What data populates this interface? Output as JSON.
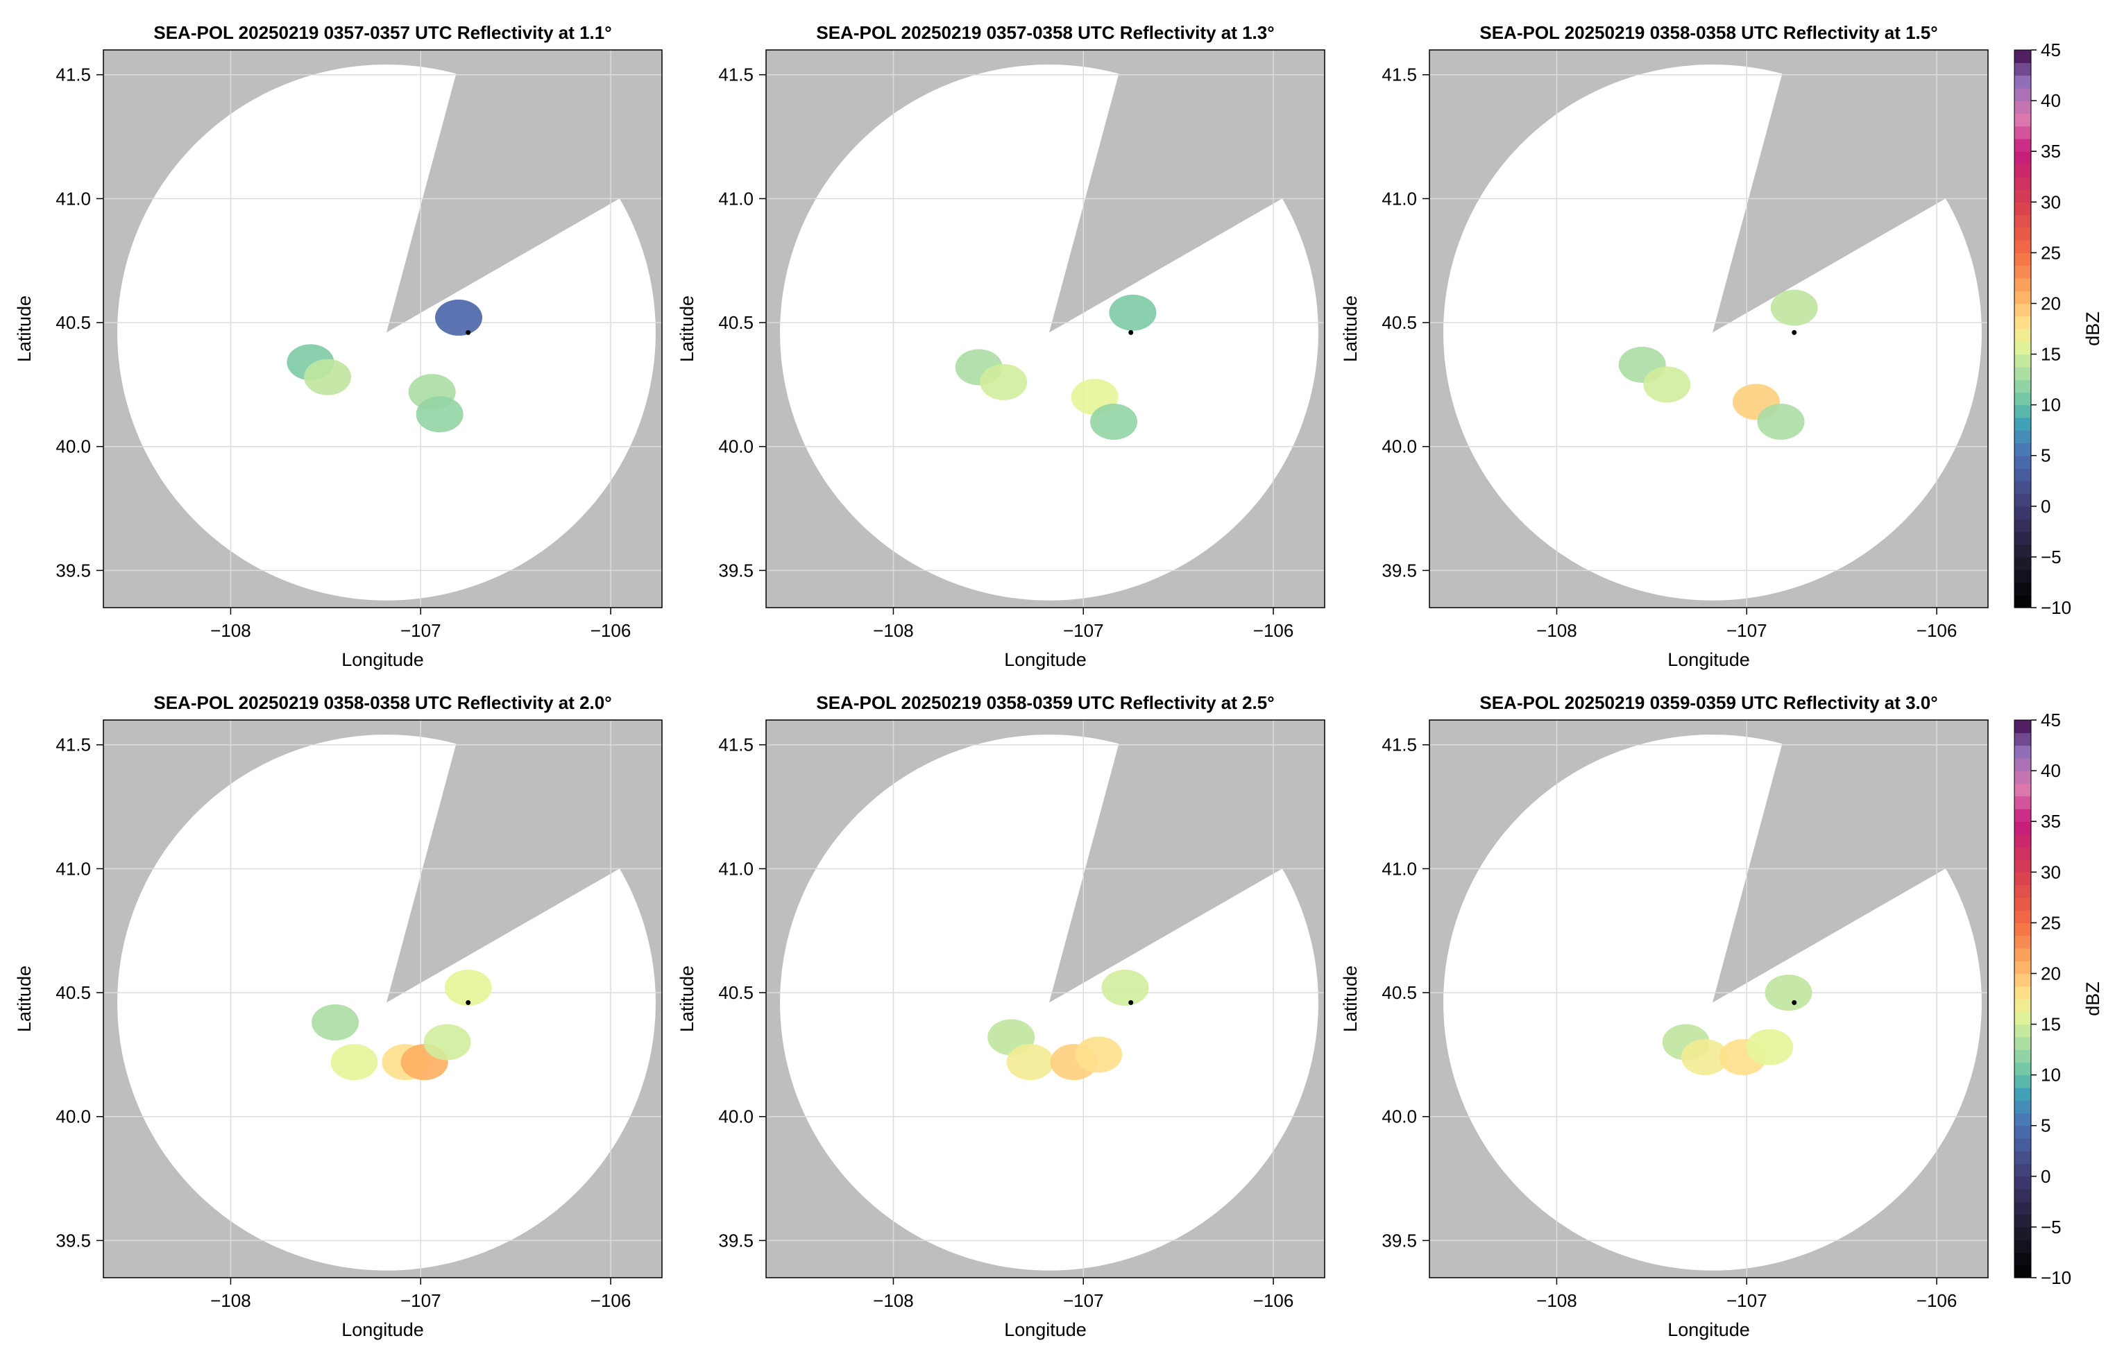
{
  "figure": {
    "colors": {
      "out_of_range": "#bebebe",
      "coverage": "#ffffff",
      "grid": "#dcdcdc",
      "axis": "#000000",
      "radar_marker": "#000000"
    },
    "colorbar": {
      "label": "dBZ",
      "ticks": [
        -10,
        -5,
        0,
        5,
        10,
        15,
        20,
        25,
        30,
        35,
        40,
        45
      ],
      "range": [
        -10,
        45
      ],
      "colormap": "spectral_r (black below 5, purple above 35)"
    }
  },
  "chart_data": [
    {
      "type": "heatmap",
      "title": "SEA-POL 20250219 0357-0357 UTC Reflectivity at 1.1°",
      "xlabel": "Longitude",
      "ylabel": "Latitude",
      "xlim": [
        -108.67,
        -105.73
      ],
      "ylim": [
        39.35,
        41.6
      ],
      "xticks": [
        -108,
        -107,
        -106
      ],
      "yticks": [
        39.5,
        40.0,
        40.5,
        41.0,
        41.5
      ],
      "grid": true,
      "radar_site": {
        "lon": -106.75,
        "lat": 40.46
      },
      "coverage_center": {
        "lon": -107.18,
        "lat": 40.46
      },
      "coverage_radius_km": 120,
      "blocked_sector_deg": [
        15,
        60
      ],
      "echoes": [
        {
          "lon": -107.58,
          "lat": 40.34,
          "dbz": 11
        },
        {
          "lon": -107.49,
          "lat": 40.28,
          "dbz": 14
        },
        {
          "lon": -106.94,
          "lat": 40.22,
          "dbz": 13
        },
        {
          "lon": -106.9,
          "lat": 40.13,
          "dbz": 12
        },
        {
          "lon": -106.8,
          "lat": 40.52,
          "dbz": 4
        }
      ]
    },
    {
      "type": "heatmap",
      "title": "SEA-POL 20250219 0357-0358 UTC Reflectivity at 1.3°",
      "xlabel": "Longitude",
      "ylabel": "Latitude",
      "xlim": [
        -108.67,
        -105.73
      ],
      "ylim": [
        39.35,
        41.6
      ],
      "xticks": [
        -108,
        -107,
        -106
      ],
      "yticks": [
        39.5,
        40.0,
        40.5,
        41.0,
        41.5
      ],
      "grid": true,
      "radar_site": {
        "lon": -106.75,
        "lat": 40.46
      },
      "coverage_center": {
        "lon": -107.18,
        "lat": 40.46
      },
      "coverage_radius_km": 120,
      "blocked_sector_deg": [
        15,
        60
      ],
      "echoes": [
        {
          "lon": -107.55,
          "lat": 40.32,
          "dbz": 13
        },
        {
          "lon": -107.42,
          "lat": 40.26,
          "dbz": 15
        },
        {
          "lon": -106.94,
          "lat": 40.2,
          "dbz": 16
        },
        {
          "lon": -106.84,
          "lat": 40.1,
          "dbz": 12
        },
        {
          "lon": -106.74,
          "lat": 40.54,
          "dbz": 11
        }
      ]
    },
    {
      "type": "heatmap",
      "title": "SEA-POL 20250219 0358-0358 UTC Reflectivity at 1.5°",
      "xlabel": "Longitude",
      "ylabel": "Latitude",
      "xlim": [
        -108.67,
        -105.73
      ],
      "ylim": [
        39.35,
        41.6
      ],
      "xticks": [
        -108,
        -107,
        -106
      ],
      "yticks": [
        39.5,
        40.0,
        40.5,
        41.0,
        41.5
      ],
      "grid": true,
      "radar_site": {
        "lon": -106.75,
        "lat": 40.46
      },
      "coverage_center": {
        "lon": -107.18,
        "lat": 40.46
      },
      "coverage_radius_km": 120,
      "blocked_sector_deg": [
        15,
        60
      ],
      "echoes": [
        {
          "lon": -107.55,
          "lat": 40.33,
          "dbz": 13
        },
        {
          "lon": -107.42,
          "lat": 40.25,
          "dbz": 15
        },
        {
          "lon": -106.95,
          "lat": 40.18,
          "dbz": 19
        },
        {
          "lon": -106.82,
          "lat": 40.1,
          "dbz": 13
        },
        {
          "lon": -106.75,
          "lat": 40.56,
          "dbz": 14
        }
      ]
    },
    {
      "type": "heatmap",
      "title": "SEA-POL 20250219 0358-0358 UTC Reflectivity at 2.0°",
      "xlabel": "Longitude",
      "ylabel": "Latitude",
      "xlim": [
        -108.67,
        -105.73
      ],
      "ylim": [
        39.35,
        41.6
      ],
      "xticks": [
        -108,
        -107,
        -106
      ],
      "yticks": [
        39.5,
        40.0,
        40.5,
        41.0,
        41.5
      ],
      "grid": true,
      "radar_site": {
        "lon": -106.75,
        "lat": 40.46
      },
      "coverage_center": {
        "lon": -107.18,
        "lat": 40.46
      },
      "coverage_radius_km": 120,
      "blocked_sector_deg": [
        15,
        60
      ],
      "echoes": [
        {
          "lon": -107.45,
          "lat": 40.38,
          "dbz": 13
        },
        {
          "lon": -107.35,
          "lat": 40.22,
          "dbz": 16
        },
        {
          "lon": -107.08,
          "lat": 40.22,
          "dbz": 18
        },
        {
          "lon": -106.98,
          "lat": 40.22,
          "dbz": 21
        },
        {
          "lon": -106.86,
          "lat": 40.3,
          "dbz": 15
        },
        {
          "lon": -106.75,
          "lat": 40.52,
          "dbz": 16
        }
      ]
    },
    {
      "type": "heatmap",
      "title": "SEA-POL 20250219 0358-0359 UTC Reflectivity at 2.5°",
      "xlabel": "Longitude",
      "ylabel": "Latitude",
      "xlim": [
        -108.67,
        -105.73
      ],
      "ylim": [
        39.35,
        41.6
      ],
      "xticks": [
        -108,
        -107,
        -106
      ],
      "yticks": [
        39.5,
        40.0,
        40.5,
        41.0,
        41.5
      ],
      "grid": true,
      "radar_site": {
        "lon": -106.75,
        "lat": 40.46
      },
      "coverage_center": {
        "lon": -107.18,
        "lat": 40.46
      },
      "coverage_radius_km": 120,
      "blocked_sector_deg": [
        15,
        60
      ],
      "echoes": [
        {
          "lon": -107.38,
          "lat": 40.32,
          "dbz": 14
        },
        {
          "lon": -107.28,
          "lat": 40.22,
          "dbz": 17
        },
        {
          "lon": -107.05,
          "lat": 40.22,
          "dbz": 19
        },
        {
          "lon": -106.92,
          "lat": 40.25,
          "dbz": 18
        },
        {
          "lon": -106.78,
          "lat": 40.52,
          "dbz": 15
        }
      ]
    },
    {
      "type": "heatmap",
      "title": "SEA-POL 20250219 0359-0359 UTC Reflectivity at 3.0°",
      "xlabel": "Longitude",
      "ylabel": "Latitude",
      "xlim": [
        -108.67,
        -105.73
      ],
      "ylim": [
        39.35,
        41.6
      ],
      "xticks": [
        -108,
        -107,
        -106
      ],
      "yticks": [
        39.5,
        40.0,
        40.5,
        41.0,
        41.5
      ],
      "grid": true,
      "radar_site": {
        "lon": -106.75,
        "lat": 40.46
      },
      "coverage_center": {
        "lon": -107.18,
        "lat": 40.46
      },
      "coverage_radius_km": 120,
      "blocked_sector_deg": [
        15,
        60
      ],
      "echoes": [
        {
          "lon": -107.32,
          "lat": 40.3,
          "dbz": 14
        },
        {
          "lon": -107.22,
          "lat": 40.24,
          "dbz": 17
        },
        {
          "lon": -107.02,
          "lat": 40.24,
          "dbz": 18
        },
        {
          "lon": -106.88,
          "lat": 40.28,
          "dbz": 16
        },
        {
          "lon": -106.78,
          "lat": 40.5,
          "dbz": 14
        }
      ]
    }
  ]
}
